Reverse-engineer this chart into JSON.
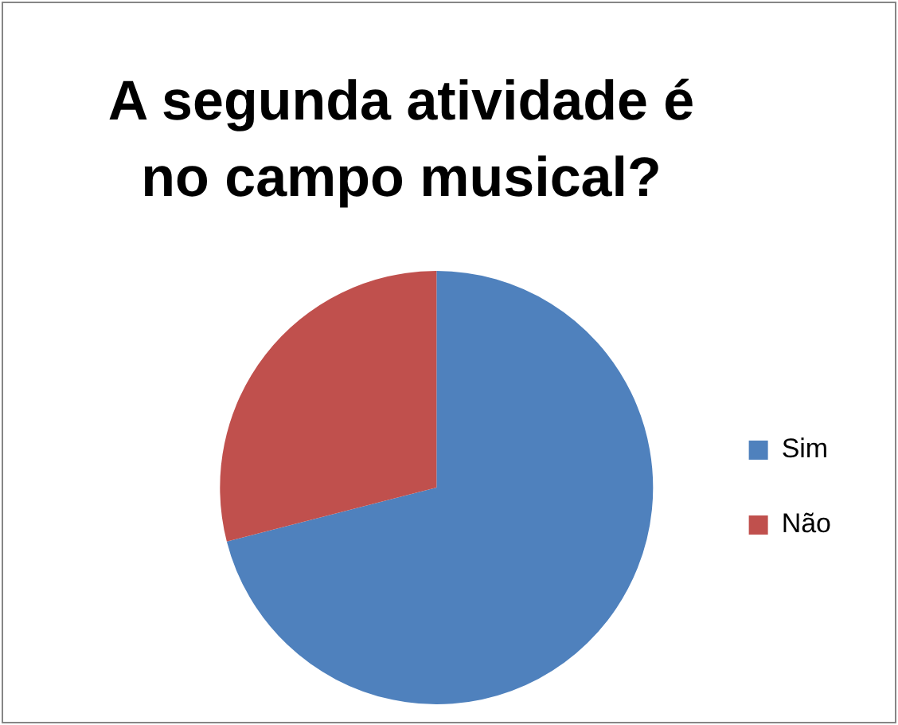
{
  "chart_data": {
    "type": "pie",
    "title": "A segunda atividade é no campo musical?",
    "categories": [
      "Sim",
      "Não"
    ],
    "values": [
      71,
      29
    ],
    "colors": [
      "#4f81bd",
      "#c0504d"
    ],
    "legend": "right"
  }
}
